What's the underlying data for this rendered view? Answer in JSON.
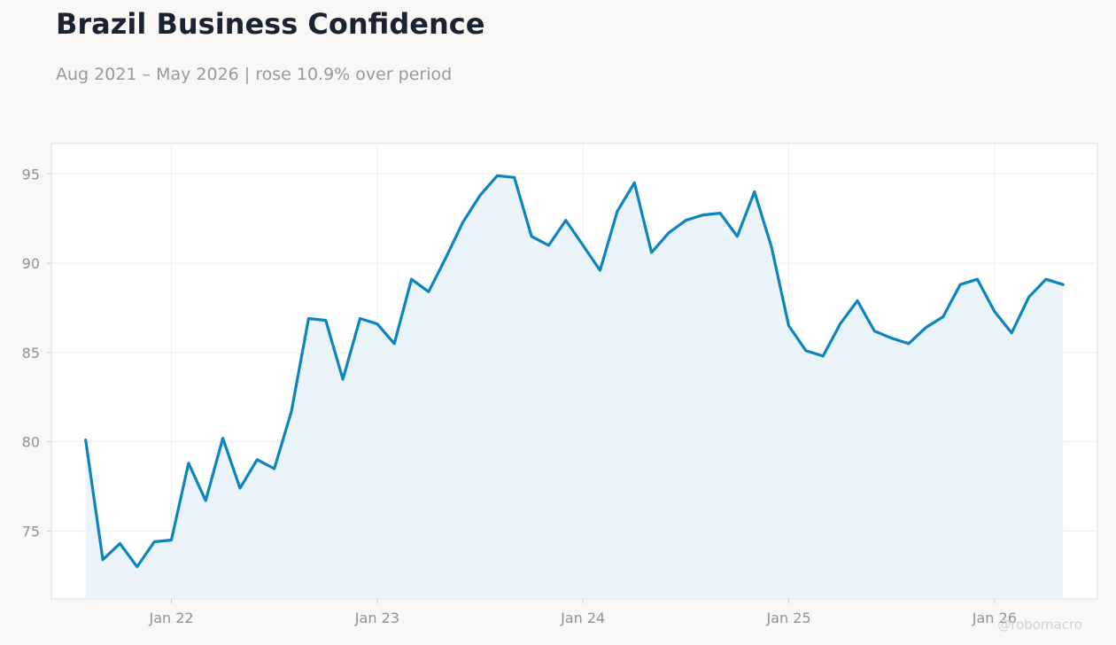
{
  "title": "Brazil Business Confidence",
  "subtitle": "Aug 2021 – May 2026 | rose 10.9% over period",
  "watermark": "@robomacro",
  "colors": {
    "background": "#f9f8f5",
    "plot_background": "#ffffff",
    "line": "#0b84c1",
    "fill": "#e8f3fa",
    "grid": "#eeeeee",
    "title": "#1b2233",
    "subtitle": "#999999"
  },
  "chart_data": {
    "type": "area",
    "title": "Brazil Business Confidence",
    "subtitle": "Aug 2021 – May 2026 | rose 10.9% over period",
    "xlabel": "",
    "ylabel": "",
    "ylim": [
      71.2,
      96.7
    ],
    "xlim": [
      "2021-06",
      "2026-07"
    ],
    "grid": true,
    "legend": "none",
    "y_ticks": [
      75,
      80,
      85,
      90,
      95
    ],
    "x_ticks": [
      {
        "date": "2022-01",
        "label": "Jan 22"
      },
      {
        "date": "2023-01",
        "label": "Jan 23"
      },
      {
        "date": "2024-01",
        "label": "Jan 24"
      },
      {
        "date": "2025-01",
        "label": "Jan 25"
      },
      {
        "date": "2026-01",
        "label": "Jan 26"
      }
    ],
    "x": [
      "2021-08",
      "2021-09",
      "2021-10",
      "2021-11",
      "2021-12",
      "2022-01",
      "2022-02",
      "2022-03",
      "2022-04",
      "2022-05",
      "2022-06",
      "2022-07",
      "2022-08",
      "2022-09",
      "2022-10",
      "2022-11",
      "2022-12",
      "2023-01",
      "2023-02",
      "2023-03",
      "2023-04",
      "2023-05",
      "2023-06",
      "2023-07",
      "2023-08",
      "2023-09",
      "2023-10",
      "2023-11",
      "2023-12",
      "2024-01",
      "2024-02",
      "2024-03",
      "2024-04",
      "2024-05",
      "2024-06",
      "2024-07",
      "2024-08",
      "2024-09",
      "2024-10",
      "2024-11",
      "2024-12",
      "2025-01",
      "2025-02",
      "2025-03",
      "2025-04",
      "2025-05",
      "2025-06",
      "2025-07",
      "2025-08",
      "2025-09",
      "2025-10",
      "2025-11",
      "2025-12",
      "2026-01",
      "2026-02",
      "2026-03",
      "2026-04",
      "2026-05"
    ],
    "series": [
      {
        "values": [
          80.1,
          73.4,
          74.3,
          73.0,
          74.4,
          74.5,
          78.8,
          76.7,
          80.2,
          77.4,
          79.0,
          78.5,
          81.7,
          86.9,
          86.8,
          83.5,
          86.9,
          86.6,
          85.5,
          89.1,
          88.4,
          90.3,
          92.3,
          93.8,
          94.9,
          94.8,
          91.5,
          91.0,
          92.4,
          91.0,
          89.6,
          92.9,
          94.5,
          90.6,
          91.7,
          92.4,
          92.7,
          92.8,
          91.5,
          94.0,
          90.9,
          86.5,
          85.1,
          84.8,
          86.6,
          87.9,
          86.2,
          85.8,
          85.5,
          86.4,
          87.0,
          88.8,
          89.1,
          87.3,
          86.1,
          88.1,
          89.1,
          88.8
        ]
      }
    ]
  }
}
